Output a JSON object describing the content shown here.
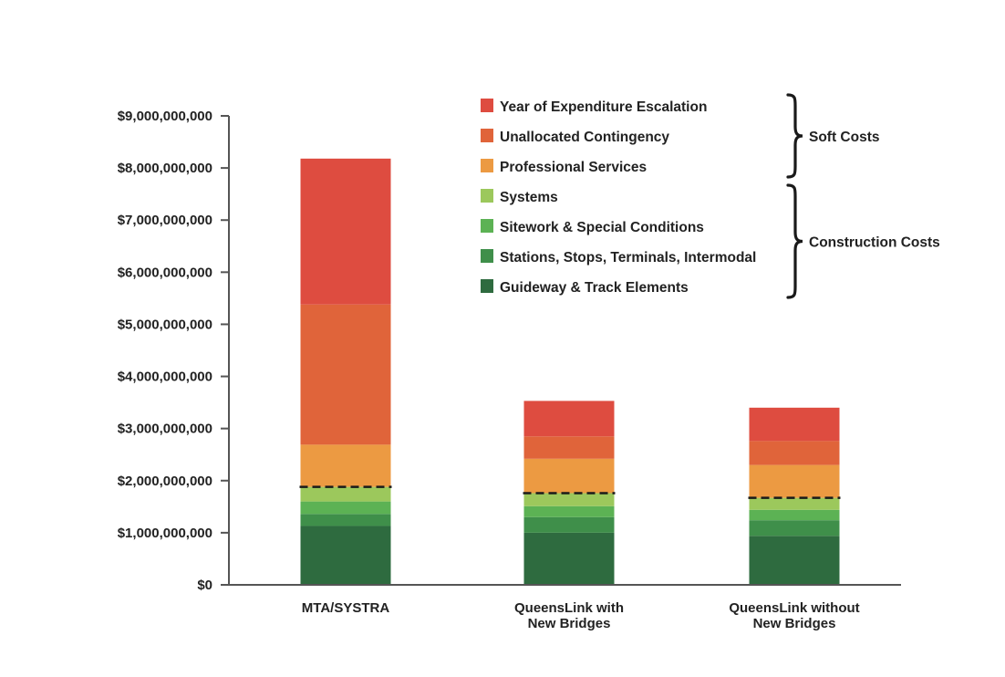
{
  "chart_data": {
    "type": "bar",
    "stacked": true,
    "categories": [
      [
        "MTA/SYSTRA"
      ],
      [
        "QueensLink with",
        "New Bridges"
      ],
      [
        "QueensLink without",
        "New Bridges"
      ]
    ],
    "series": [
      {
        "name": "Guideway & Track Elements",
        "color": "#2e6b3f",
        "values": [
          1130000000,
          1000000000,
          940000000
        ]
      },
      {
        "name": "Stations, Stops, Terminals, Intermodal",
        "color": "#3f8f4a",
        "values": [
          230000000,
          300000000,
          300000000
        ]
      },
      {
        "name": "Sitework & Special Conditions",
        "color": "#5cb254",
        "values": [
          240000000,
          210000000,
          200000000
        ]
      },
      {
        "name": "Systems",
        "color": "#9cc85c",
        "values": [
          280000000,
          250000000,
          230000000
        ]
      },
      {
        "name": "Professional Services",
        "color": "#ec9a42",
        "values": [
          810000000,
          660000000,
          630000000
        ]
      },
      {
        "name": "Unallocated Contingency",
        "color": "#e0643a",
        "values": [
          2690000000,
          430000000,
          460000000
        ]
      },
      {
        "name": "Year of Expenditure Escalation",
        "color": "#de4c40",
        "values": [
          2800000000,
          680000000,
          640000000
        ]
      }
    ],
    "construction_totals": [
      1880000000,
      1760000000,
      1670000000
    ],
    "legend_order": [
      "Year of Expenditure Escalation",
      "Unallocated Contingency",
      "Professional Services",
      "Systems",
      "Sitework & Special Conditions",
      "Stations, Stops, Terminals, Intermodal",
      "Guideway & Track Elements"
    ],
    "legend_groups": [
      {
        "label": "Soft Costs",
        "members": [
          "Year of Expenditure Escalation",
          "Unallocated Contingency",
          "Professional Services"
        ]
      },
      {
        "label": "Construction Costs",
        "members": [
          "Systems",
          "Sitework & Special Conditions",
          "Stations, Stops, Terminals, Intermodal",
          "Guideway & Track Elements"
        ]
      }
    ],
    "ylim": [
      0,
      9000000000
    ],
    "yticks": [
      0,
      1000000000,
      2000000000,
      3000000000,
      4000000000,
      5000000000,
      6000000000,
      7000000000,
      8000000000,
      9000000000
    ],
    "ytick_labels": [
      "$0",
      "$1,000,000,000",
      "$2,000,000,000",
      "$3,000,000,000",
      "$4,000,000,000",
      "$5,000,000,000",
      "$6,000,000,000",
      "$7,000,000,000",
      "$8,000,000,000",
      "$9,000,000,000"
    ],
    "grid": false,
    "legend_position": "top-right",
    "title": "",
    "xlabel": "",
    "ylabel": ""
  }
}
